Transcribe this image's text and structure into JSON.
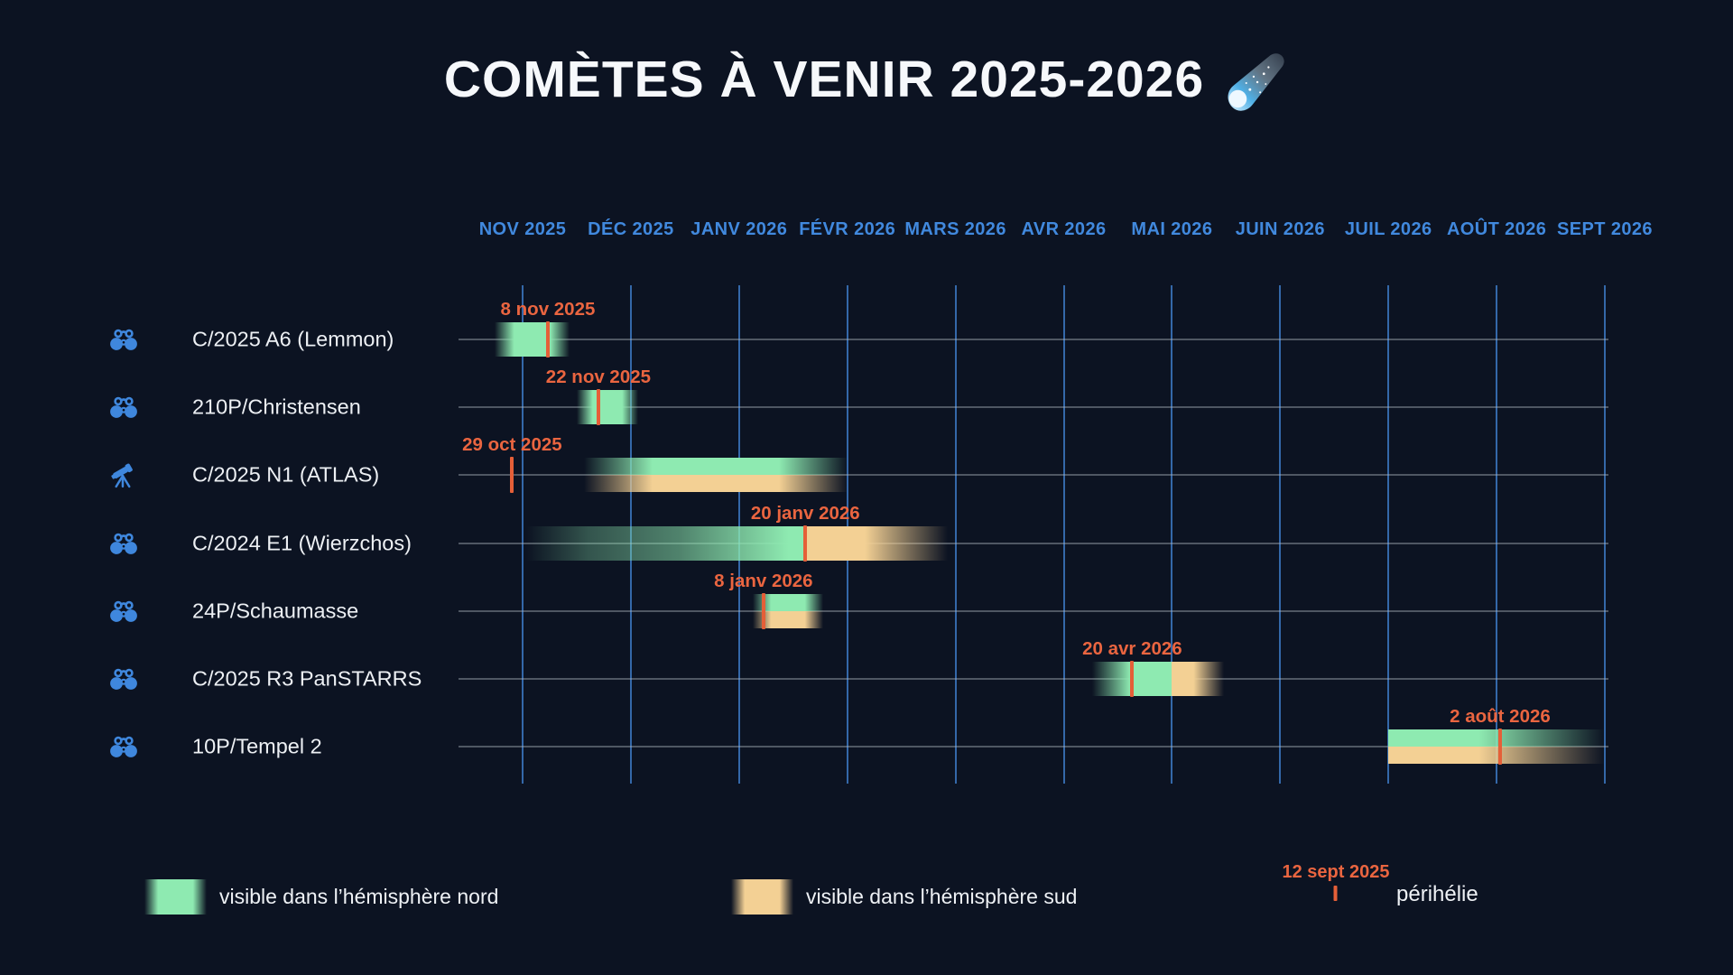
{
  "title": {
    "text": "COMÈTES À VENIR 2025-2026",
    "icon": "comet-icon"
  },
  "colors": {
    "background": "#0c1322",
    "title_text": "#f6f8fb",
    "month_label": "#4189de",
    "gridline": "#3a74bc",
    "row_line": "#adb4bf",
    "comet_label": "#edf0f4",
    "north_visibility": "#8eeab1",
    "south_visibility": "#f3d094",
    "perihelion": "#e55f38",
    "date_label": "#ea6540",
    "icon_blue": "#3f87dd"
  },
  "chart_data": {
    "type": "timeline",
    "title": "COMÈTES À VENIR 2025-2026",
    "months": [
      {
        "label": "NOV 2025",
        "date": "2025-11-01"
      },
      {
        "label": "DÉC 2025",
        "date": "2025-12-01"
      },
      {
        "label": "JANV 2026",
        "date": "2026-01-01"
      },
      {
        "label": "FÉVR 2026",
        "date": "2026-02-01"
      },
      {
        "label": "MARS 2026",
        "date": "2026-03-01"
      },
      {
        "label": "AVR 2026",
        "date": "2026-04-01"
      },
      {
        "label": "MAI 2026",
        "date": "2026-05-01"
      },
      {
        "label": "JUIN 2026",
        "date": "2026-06-01"
      },
      {
        "label": "JUIL 2026",
        "date": "2026-07-01"
      },
      {
        "label": "AOÛT 2026",
        "date": "2026-08-01"
      },
      {
        "label": "SEPT 2026",
        "date": "2026-09-01"
      }
    ],
    "rows": [
      {
        "name": "C/2025 A6 (Lemmon)",
        "instrument": "binoculars",
        "perihelion": {
          "date": "2025-11-08",
          "label": "8 nov 2025"
        },
        "segments": [
          {
            "hemisphere": "north",
            "start": "2025-10-24",
            "end": "2025-11-14",
            "band": "full",
            "fade": "both"
          }
        ]
      },
      {
        "name": "210P/Christensen",
        "instrument": "binoculars",
        "perihelion": {
          "date": "2025-11-22",
          "label": "22 nov 2025"
        },
        "segments": [
          {
            "hemisphere": "north",
            "start": "2025-11-16",
            "end": "2025-12-03",
            "band": "full",
            "fade": "both"
          }
        ]
      },
      {
        "name": "C/2025 N1 (ATLAS)",
        "instrument": "telescope",
        "perihelion": {
          "date": "2025-10-29",
          "label": "29 oct 2025"
        },
        "segments": [
          {
            "hemisphere": "north",
            "start": "2025-11-18",
            "end": "2026-02-01",
            "band": "top",
            "fade": "both"
          },
          {
            "hemisphere": "south",
            "start": "2025-11-18",
            "end": "2026-02-01",
            "band": "bottom",
            "fade": "both"
          }
        ]
      },
      {
        "name": "C/2024 E1 (Wierzchos)",
        "instrument": "binoculars",
        "perihelion": {
          "date": "2026-01-20",
          "label": "20 janv 2026"
        },
        "segments": [
          {
            "hemisphere": "north",
            "start": "2025-11-02",
            "end": "2026-01-20",
            "band": "full",
            "fade": "long-in"
          },
          {
            "hemisphere": "south",
            "start": "2026-01-20",
            "end": "2026-02-27",
            "band": "full",
            "fade": "out"
          }
        ]
      },
      {
        "name": "24P/Schaumasse",
        "instrument": "binoculars",
        "perihelion": {
          "date": "2026-01-08",
          "label": "8 janv 2026"
        },
        "segments": [
          {
            "hemisphere": "north",
            "start": "2026-01-05",
            "end": "2026-01-25",
            "band": "top",
            "fade": "both"
          },
          {
            "hemisphere": "south",
            "start": "2026-01-05",
            "end": "2026-01-25",
            "band": "bottom",
            "fade": "both"
          }
        ]
      },
      {
        "name": "C/2025 R3 PanSTARRS",
        "instrument": "binoculars",
        "perihelion": {
          "date": "2026-04-20",
          "label": "20 avr 2026"
        },
        "segments": [
          {
            "hemisphere": "north",
            "start": "2026-04-09",
            "end": "2026-05-01",
            "band": "full",
            "fade": "in"
          },
          {
            "hemisphere": "south",
            "start": "2026-05-01",
            "end": "2026-05-16",
            "band": "full",
            "fade": "out"
          }
        ]
      },
      {
        "name": "10P/Tempel 2",
        "instrument": "binoculars",
        "perihelion": {
          "date": "2026-08-02",
          "label": "2 août 2026"
        },
        "segments": [
          {
            "hemisphere": "north",
            "start": "2026-07-01",
            "end": "2026-09-01",
            "band": "top",
            "fade": "out"
          },
          {
            "hemisphere": "south",
            "start": "2026-07-01",
            "end": "2026-09-01",
            "band": "bottom",
            "fade": "out"
          }
        ]
      }
    ],
    "legend": [
      {
        "swatch": "north",
        "label": "visible dans l’hémisphère nord"
      },
      {
        "swatch": "south",
        "label": "visible dans l’hémisphère sud"
      },
      {
        "swatch": "perihelion",
        "date_label": "12 sept 2025",
        "label": "périhélie"
      }
    ]
  }
}
